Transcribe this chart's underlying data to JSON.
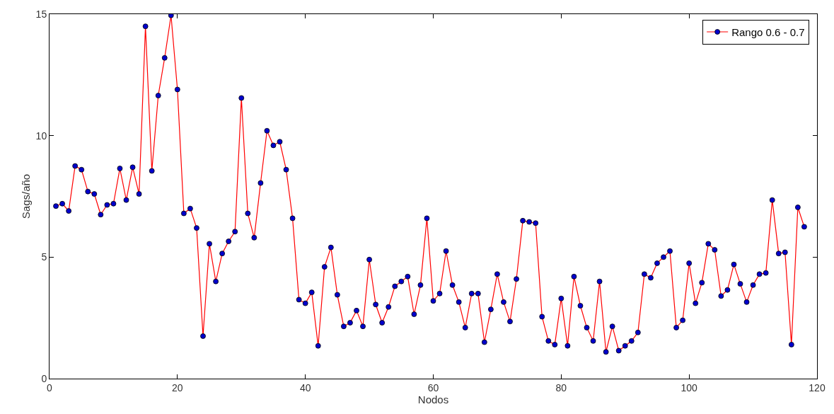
{
  "chart_data": {
    "type": "line",
    "xlabel": "Nodos",
    "ylabel": "Sags/año",
    "x": [
      1,
      2,
      3,
      4,
      5,
      6,
      7,
      8,
      9,
      10,
      11,
      12,
      13,
      14,
      15,
      16,
      17,
      18,
      19,
      20,
      21,
      22,
      23,
      24,
      25,
      26,
      27,
      28,
      29,
      30,
      31,
      32,
      33,
      34,
      35,
      36,
      37,
      38,
      39,
      40,
      41,
      42,
      43,
      44,
      45,
      46,
      47,
      48,
      49,
      50,
      51,
      52,
      53,
      54,
      55,
      56,
      57,
      58,
      59,
      60,
      61,
      62,
      63,
      64,
      65,
      66,
      67,
      68,
      69,
      70,
      71,
      72,
      73,
      74,
      75,
      76,
      77,
      78,
      79,
      80,
      81,
      82,
      83,
      84,
      85,
      86,
      87,
      88,
      89,
      90,
      91,
      92,
      93,
      94,
      95,
      96,
      97,
      98,
      99,
      100,
      101,
      102,
      103,
      104,
      105,
      106,
      107,
      108,
      109,
      110,
      111,
      112,
      113,
      114,
      115,
      116,
      117,
      118
    ],
    "series": [
      {
        "name": "Rango 0.6 - 0.7",
        "color": "#ff0000",
        "values": [
          7.1,
          7.2,
          6.9,
          8.75,
          8.6,
          7.7,
          7.6,
          6.75,
          7.15,
          7.2,
          8.65,
          7.35,
          8.7,
          7.6,
          14.5,
          8.55,
          11.65,
          13.2,
          14.95,
          11.9,
          6.8,
          7.0,
          6.2,
          1.75,
          5.55,
          4.0,
          5.15,
          5.65,
          6.05,
          11.55,
          6.8,
          5.8,
          8.05,
          10.2,
          9.6,
          9.75,
          8.6,
          6.6,
          3.25,
          3.1,
          3.55,
          1.35,
          4.6,
          5.4,
          3.45,
          2.15,
          2.3,
          2.8,
          2.15,
          4.9,
          3.05,
          2.3,
          2.95,
          3.8,
          4.0,
          4.2,
          2.65,
          3.85,
          6.6,
          3.2,
          3.5,
          5.25,
          3.85,
          3.15,
          2.1,
          3.5,
          3.5,
          1.5,
          2.85,
          4.3,
          3.15,
          2.35,
          4.1,
          6.5,
          6.45,
          6.4,
          2.55,
          1.55,
          1.4,
          3.3,
          1.35,
          4.2,
          3.0,
          2.1,
          1.55,
          4.0,
          1.1,
          2.15,
          1.15,
          1.35,
          1.55,
          1.9,
          4.3,
          4.15,
          4.75,
          5.0,
          5.25,
          2.1,
          2.4,
          4.75,
          3.1,
          3.95,
          5.55,
          5.3,
          3.4,
          3.65,
          4.7,
          3.9,
          3.15,
          3.85,
          4.3,
          4.35,
          7.35,
          5.15,
          5.2,
          1.4,
          7.05,
          6.25
        ]
      }
    ],
    "xlim": [
      0,
      120
    ],
    "xticks": [
      0,
      20,
      40,
      60,
      80,
      100,
      120
    ],
    "ylim": [
      0,
      15
    ],
    "yticks": [
      0,
      5,
      10,
      15
    ],
    "legend": "top right",
    "marker": "circle",
    "line_style": "solid"
  }
}
